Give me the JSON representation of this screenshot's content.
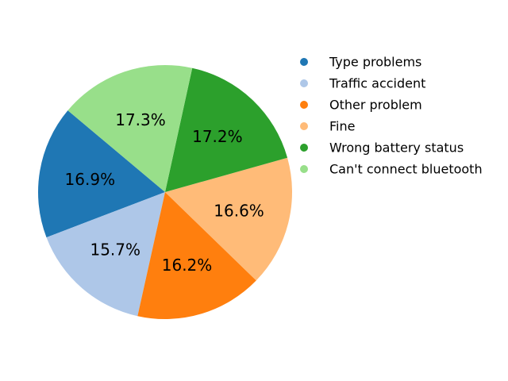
{
  "chart_data": {
    "type": "pie",
    "title": "",
    "categories": [
      "Type problems",
      "Traffic accident",
      "Other problem",
      "Fine",
      "Wrong battery status",
      "Can't connect bluetooth"
    ],
    "values": [
      16.9,
      15.7,
      16.2,
      16.6,
      17.2,
      17.3
    ],
    "labels": [
      "16.9%",
      "15.7%",
      "16.2%",
      "16.6%",
      "17.2%",
      "17.3%"
    ],
    "colors": [
      "#1f77b4",
      "#aec7e8",
      "#ff7f0e",
      "#ffbb78",
      "#2ca02c",
      "#98df8a"
    ],
    "start_angle_deg": 140,
    "direction": "counterclockwise",
    "legend_position": "right"
  }
}
